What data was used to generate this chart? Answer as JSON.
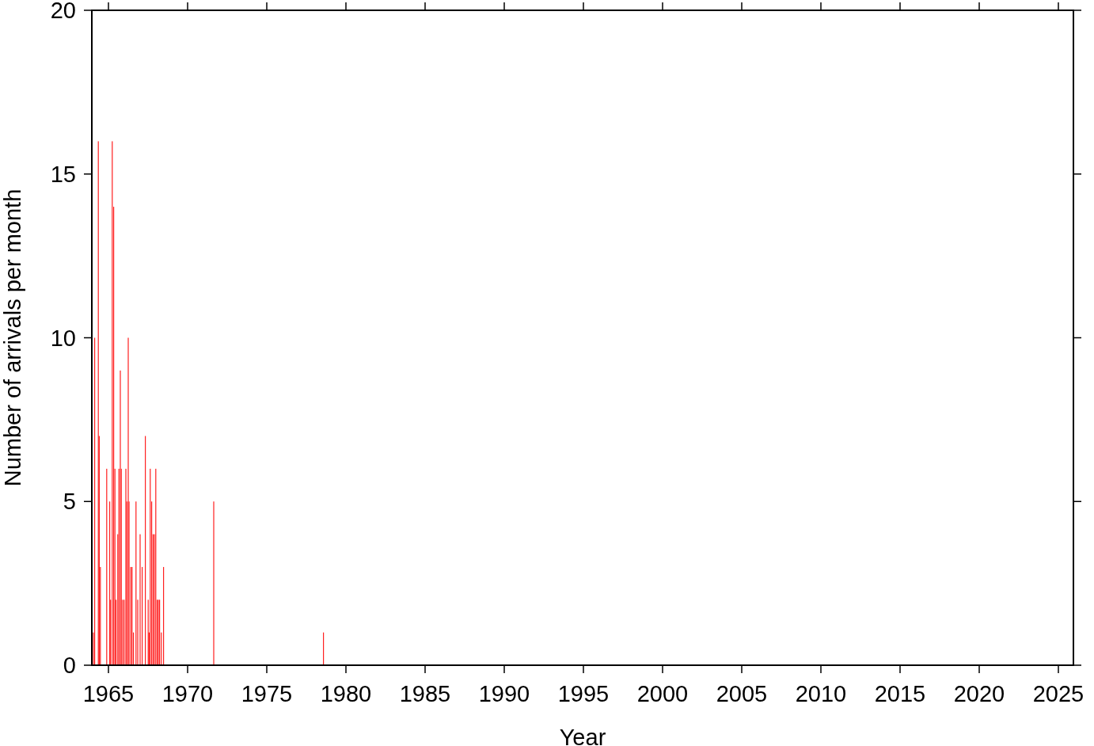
{
  "chart_data": {
    "type": "bar",
    "xlabel": "Year",
    "ylabel": "Number of arrivals per month",
    "x": [
      1964.05,
      1964.13,
      1964.36,
      1964.42,
      1964.49,
      1964.89,
      1965.08,
      1965.13,
      1965.24,
      1965.33,
      1965.41,
      1965.48,
      1965.59,
      1965.66,
      1965.75,
      1965.81,
      1965.9,
      1965.99,
      1966.1,
      1966.16,
      1966.25,
      1966.3,
      1966.41,
      1966.49,
      1966.58,
      1966.74,
      1966.85,
      1967.0,
      1967.13,
      1967.33,
      1967.51,
      1967.57,
      1967.64,
      1967.73,
      1967.82,
      1967.9,
      1967.99,
      1968.08,
      1968.15,
      1968.23,
      1968.34,
      1968.48,
      1971.65,
      1978.58
    ],
    "values": [
      1,
      10,
      16,
      7,
      3,
      6,
      5,
      2,
      16,
      14,
      6,
      2,
      4,
      6,
      9,
      6,
      2,
      2,
      6,
      5,
      10,
      5,
      3,
      3,
      1,
      5,
      2,
      4,
      3,
      7,
      2,
      1,
      6,
      5,
      4,
      4,
      6,
      2,
      2,
      2,
      1,
      3,
      5,
      1
    ],
    "color": "#ff2020",
    "xlim": [
      1963.95,
      2025.95
    ],
    "xticks": [
      1965,
      1970,
      1975,
      1980,
      1985,
      1990,
      1995,
      2000,
      2005,
      2010,
      2015,
      2020,
      2025
    ],
    "ylim": [
      0,
      20
    ],
    "yticks": [
      0,
      5,
      10,
      15,
      20
    ],
    "grid": false
  }
}
